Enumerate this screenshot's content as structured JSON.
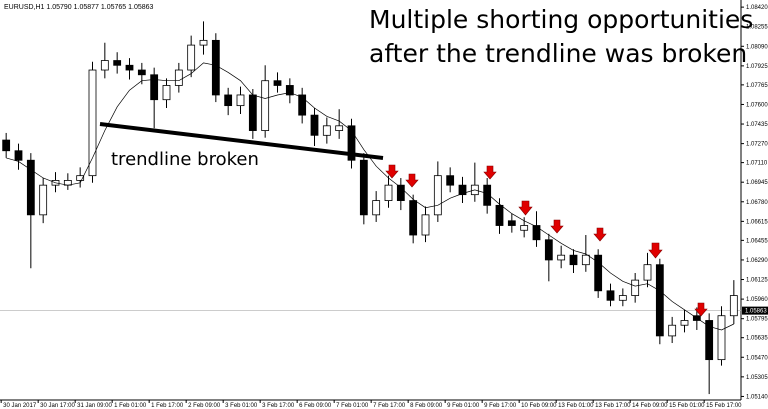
{
  "chart_data": {
    "type": "candlestick",
    "header": "EURUSD,H1 1.05790 1.05877 1.05765 1.05863",
    "annotations": [
      "Multiple shorting opportunities",
      "after the trendline was broken",
      "trendline broken"
    ],
    "categories": [
      "30 Jan 2017",
      null,
      null,
      "30 Jan 17:00",
      null,
      null,
      "31 Jan 09:00",
      null,
      null,
      "1 Feb 01:00",
      null,
      null,
      "1 Feb 17:00",
      null,
      null,
      "2 Feb 09:00",
      null,
      null,
      "3 Feb 01:00",
      null,
      null,
      "3 Feb 17:00",
      null,
      null,
      "6 Feb 09:00",
      null,
      null,
      "7 Feb 01:00",
      null,
      null,
      "7 Feb 17:00",
      null,
      null,
      "8 Feb 09:00",
      null,
      null,
      "9 Feb 01:00",
      null,
      null,
      "9 Feb 17:00",
      null,
      null,
      "10 Feb 09:00",
      null,
      null,
      "13 Feb 01:00",
      null,
      null,
      "13 Feb 17:00",
      null,
      null,
      "14 Feb 09:00",
      null,
      null,
      "15 Feb 01:00",
      null,
      null,
      "15 Feb 17:00",
      null,
      null
    ],
    "open": [
      1.073,
      1.0721,
      1.0713,
      1.0667,
      1.0692,
      1.0692,
      1.0696,
      1.07,
      1.0789,
      1.0797,
      1.0793,
      1.0789,
      1.0785,
      1.0764,
      1.0776,
      1.0789,
      1.081,
      1.0814,
      1.0768,
      1.0759,
      1.0768,
      1.0738,
      1.078,
      1.0776,
      1.0768,
      1.0751,
      1.0734,
      1.0738,
      1.0742,
      1.0713,
      1.0667,
      1.0679,
      1.0692,
      1.0679,
      1.065,
      1.0667,
      1.07,
      1.0692,
      1.0684,
      1.0692,
      1.0675,
      1.0662,
      1.0654,
      1.0658,
      1.0646,
      1.0629,
      1.0633,
      1.0625,
      1.0633,
      1.0603,
      1.0595,
      1.0599,
      1.0612,
      1.0625,
      1.0565,
      1.0574,
      1.0582,
      1.0578,
      1.0545,
      1.0582
    ],
    "high": [
      1.0736,
      1.0727,
      1.0719,
      1.0698,
      1.0703,
      1.0702,
      1.0707,
      1.0796,
      1.0812,
      1.0804,
      1.0799,
      1.0795,
      1.0791,
      1.0782,
      1.0795,
      1.0818,
      1.083,
      1.082,
      1.0774,
      1.0775,
      1.0773,
      1.0793,
      1.0787,
      1.0782,
      1.0774,
      1.0757,
      1.0749,
      1.0756,
      1.0748,
      1.0719,
      1.0687,
      1.07,
      1.0698,
      1.0684,
      1.0674,
      1.0712,
      1.0707,
      1.0699,
      1.0711,
      1.0698,
      1.0681,
      1.0668,
      1.0665,
      1.067,
      1.0651,
      1.0641,
      1.0638,
      1.065,
      1.0638,
      1.0609,
      1.0605,
      1.0618,
      1.0635,
      1.063,
      1.0581,
      1.0587,
      1.0589,
      1.0584,
      1.059,
      1.0612
    ],
    "low": [
      1.0715,
      1.0705,
      1.0622,
      1.066,
      1.0686,
      1.0688,
      1.069,
      1.0694,
      1.0782,
      1.0786,
      1.0781,
      1.0777,
      1.074,
      1.0757,
      1.077,
      1.0783,
      1.0802,
      1.0762,
      1.0751,
      1.0752,
      1.0731,
      1.0732,
      1.077,
      1.0761,
      1.0744,
      1.0725,
      1.0727,
      1.0731,
      1.0706,
      1.0659,
      1.0661,
      1.0673,
      1.0671,
      1.0643,
      1.0644,
      1.0661,
      1.0686,
      1.0677,
      1.0678,
      1.0668,
      1.0651,
      1.0652,
      1.0648,
      1.064,
      1.0611,
      1.0622,
      1.0618,
      1.0619,
      1.0597,
      1.059,
      1.059,
      1.0593,
      1.0606,
      1.0558,
      1.0559,
      1.0568,
      1.057,
      1.0516,
      1.054,
      1.0575
    ],
    "close": [
      1.0721,
      1.0713,
      1.0667,
      1.0692,
      1.0696,
      1.0696,
      1.07,
      1.0789,
      1.0797,
      1.0793,
      1.0789,
      1.0785,
      1.0764,
      1.0776,
      1.0789,
      1.081,
      1.0814,
      1.0768,
      1.0759,
      1.0768,
      1.0738,
      1.078,
      1.0776,
      1.0768,
      1.0751,
      1.0734,
      1.0742,
      1.0742,
      1.0713,
      1.0667,
      1.0679,
      1.0692,
      1.0679,
      1.065,
      1.0667,
      1.07,
      1.0692,
      1.0684,
      1.0692,
      1.0675,
      1.0658,
      1.0658,
      1.0658,
      1.0646,
      1.0629,
      1.0633,
      1.0625,
      1.0633,
      1.0603,
      1.0595,
      1.0599,
      1.0612,
      1.0625,
      1.0565,
      1.0574,
      1.0578,
      1.0578,
      1.0545,
      1.0582,
      1.0599
    ],
    "ma": {
      "color": "#000000",
      "values": [
        1.0715,
        1.0712,
        1.0705,
        1.0698,
        1.0694,
        1.0692,
        1.0694,
        1.0715,
        1.0738,
        1.0758,
        1.0772,
        1.078,
        1.0781,
        1.078,
        1.078,
        1.0786,
        1.0795,
        1.0793,
        1.0787,
        1.078,
        1.0768,
        1.0765,
        1.0768,
        1.077,
        1.0766,
        1.0757,
        1.075,
        1.0746,
        1.0738,
        1.0722,
        1.0708,
        1.0698,
        1.069,
        1.068,
        1.0673,
        1.0675,
        1.0681,
        1.0685,
        1.0688,
        1.0685,
        1.0676,
        1.0668,
        1.0662,
        1.0657,
        1.065,
        1.0643,
        1.0637,
        1.0634,
        1.0627,
        1.0618,
        1.0611,
        1.0607,
        1.0609,
        1.0603,
        1.0594,
        1.0587,
        1.058,
        1.0573,
        1.057,
        1.0575
      ]
    },
    "up_color": "#ffffff",
    "down_color": "#000000",
    "current_price": {
      "value": 1.05863,
      "label": "1.05863"
    },
    "ylim": [
      1.0511,
      1.0848
    ],
    "yticks": [
      {
        "value": 1.0842,
        "label": "1.08420"
      },
      {
        "value": 1.08255,
        "label": "1.08255"
      },
      {
        "value": 1.0809,
        "label": "1.08090"
      },
      {
        "value": 1.07925,
        "label": "1.07925"
      },
      {
        "value": 1.07765,
        "label": "1.07765"
      },
      {
        "value": 1.076,
        "label": "1.07600"
      },
      {
        "value": 1.07435,
        "label": "1.07435"
      },
      {
        "value": 1.0727,
        "label": "1.07270"
      },
      {
        "value": 1.0711,
        "label": "1.07110"
      },
      {
        "value": 1.06945,
        "label": "1.06945"
      },
      {
        "value": 1.0678,
        "label": "1.06780"
      },
      {
        "value": 1.06615,
        "label": "1.06615"
      },
      {
        "value": 1.06455,
        "label": "1.06455"
      },
      {
        "value": 1.0629,
        "label": "1.06290"
      },
      {
        "value": 1.06125,
        "label": "1.06125"
      },
      {
        "value": 1.0596,
        "label": "1.05960"
      },
      {
        "value": 1.05795,
        "label": "1.05795"
      },
      {
        "value": 1.05635,
        "label": "1.05635"
      },
      {
        "value": 1.0547,
        "label": "1.05470"
      },
      {
        "value": 1.05305,
        "label": "1.05305"
      },
      {
        "value": 1.0514,
        "label": "1.05140"
      }
    ]
  }
}
